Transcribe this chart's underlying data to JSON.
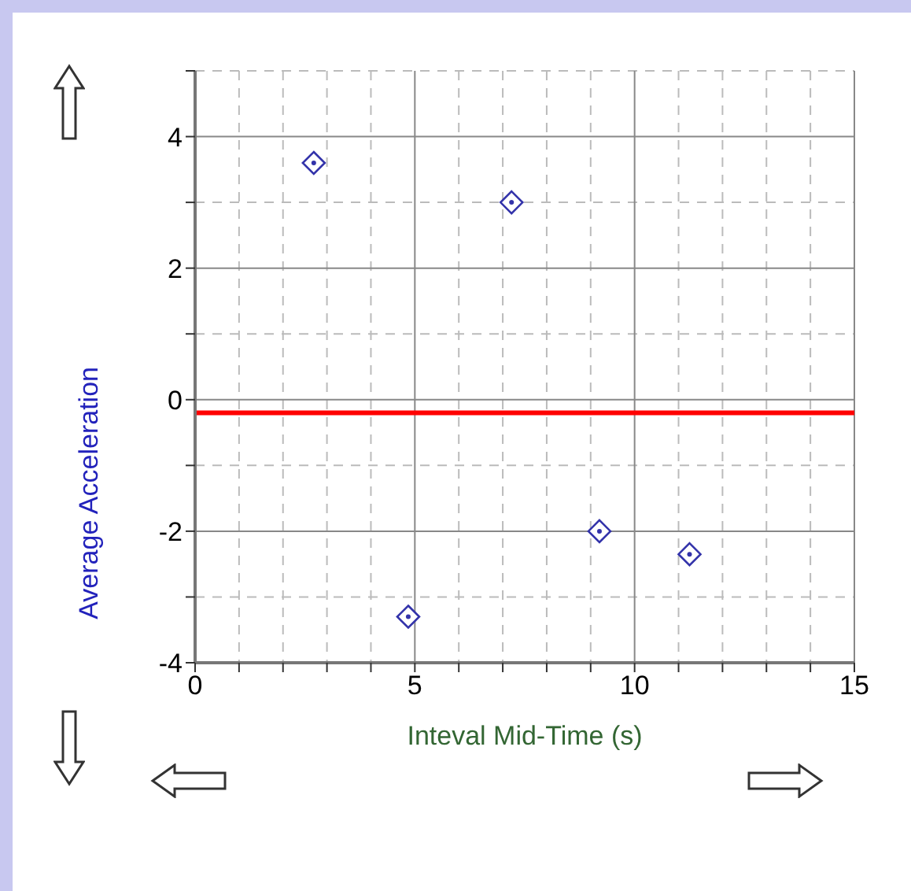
{
  "chart_data": {
    "type": "scatter",
    "xlabel": "Inteval Mid-Time (s)",
    "ylabel": "Average Acceleration",
    "x": [
      2.7,
      7.2,
      4.85,
      9.2,
      11.25
    ],
    "series": [
      {
        "color": "#3333aa",
        "values": [
          3.6,
          3.0,
          -3.3,
          -2.0,
          -2.35
        ]
      }
    ],
    "marker": "diamond",
    "grid": true,
    "legend": false,
    "xlim": [
      0,
      15
    ],
    "ylim": [
      -4,
      5
    ],
    "xticks": [
      0,
      {
        "value": 1,
        "label": null
      },
      {
        "value": 2,
        "label": null
      },
      {
        "value": 3,
        "label": null
      },
      {
        "value": 4,
        "label": null
      },
      5,
      {
        "value": 6,
        "label": null
      },
      {
        "value": 7,
        "label": null
      },
      {
        "value": 8,
        "label": null
      },
      {
        "value": 9,
        "label": null
      },
      10,
      {
        "value": 11,
        "label": null
      },
      {
        "value": 12,
        "label": null
      },
      {
        "value": 13,
        "label": null
      },
      {
        "value": 14,
        "label": null
      },
      15
    ],
    "yticks": [
      -4,
      {
        "value": -3,
        "label": null
      },
      -2,
      {
        "value": -1,
        "label": null
      },
      0,
      {
        "value": 1,
        "label": null
      },
      2,
      {
        "value": 3,
        "label": null
      },
      4,
      {
        "value": 5,
        "label": null
      }
    ],
    "ref_lines": [
      {
        "axis": "y",
        "value": -0.2,
        "color": "#ff0000"
      }
    ]
  }
}
